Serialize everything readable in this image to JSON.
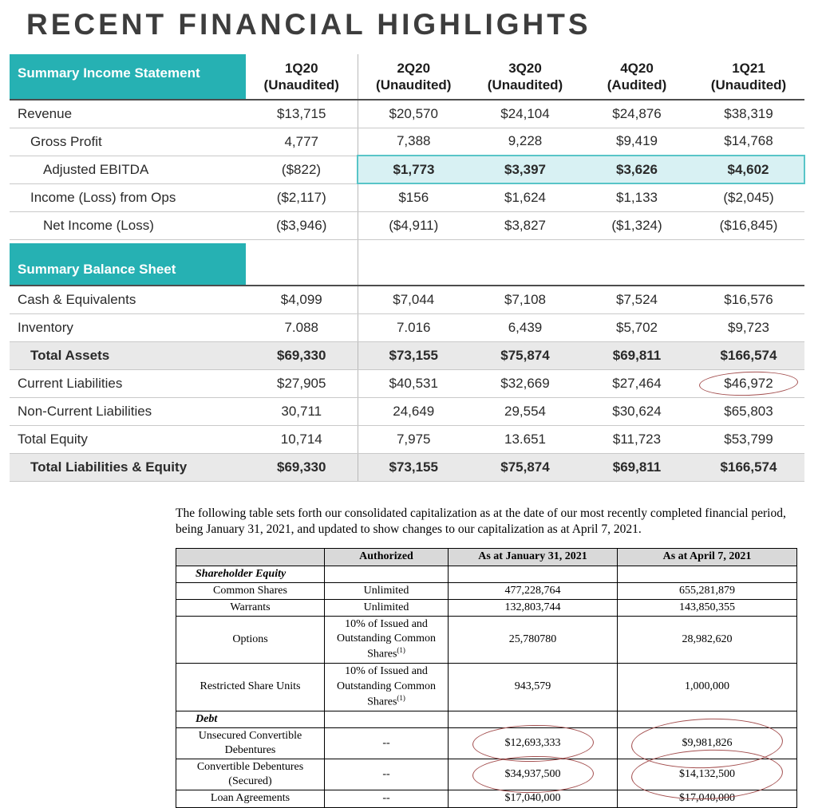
{
  "page": {
    "title": "RECENT FINANCIAL HIGHLIGHTS"
  },
  "colors": {
    "teal": "#26b1b3",
    "highlight_bg": "#d8f1f3",
    "highlight_border": "#58c5c8",
    "total_row_bg": "#e9e9e9",
    "table2_header_bg": "#d9d9d9",
    "annotation_red": "#a34f4f"
  },
  "summary_table": {
    "income_header": "Summary Income Statement",
    "balance_header": "Summary Balance Sheet",
    "columns": [
      {
        "period": "1Q20",
        "status": "(Unaudited)"
      },
      {
        "period": "2Q20",
        "status": "(Unaudited)"
      },
      {
        "period": "3Q20",
        "status": "(Unaudited)"
      },
      {
        "period": "4Q20",
        "status": "(Audited)"
      },
      {
        "period": "1Q21",
        "status": "(Unaudited)"
      }
    ],
    "income_rows": [
      {
        "label": "Revenue",
        "indent": 0,
        "values": [
          "$13,715",
          "$20,570",
          "$24,104",
          "$24,876",
          "$38,319"
        ]
      },
      {
        "label": "Gross Profit",
        "indent": 1,
        "values": [
          "4,777",
          "7,388",
          "9,228",
          "$9,419",
          "$14,768"
        ]
      },
      {
        "label": "Adjusted EBITDA",
        "indent": 2,
        "highlight": true,
        "values": [
          "($822)",
          "$1,773",
          "$3,397",
          "$3,626",
          "$4,602"
        ]
      },
      {
        "label": "Income (Loss) from Ops",
        "indent": 1,
        "values": [
          "($2,117)",
          "$156",
          "$1,624",
          "$1,133",
          "($2,045)"
        ]
      },
      {
        "label": "Net Income (Loss)",
        "indent": 2,
        "values": [
          "($3,946)",
          "($4,911)",
          "$3,827",
          "($1,324)",
          "($16,845)"
        ]
      }
    ],
    "balance_rows": [
      {
        "label": "Cash & Equivalents",
        "indent": 0,
        "values": [
          "$4,099",
          "$7,044",
          "$7,108",
          "$7,524",
          "$16,576"
        ]
      },
      {
        "label": "Inventory",
        "indent": 0,
        "values": [
          "7.088",
          "7.016",
          "6,439",
          "$5,702",
          "$9,723"
        ]
      },
      {
        "label": "Total Assets",
        "indent": 1,
        "total": true,
        "values": [
          "$69,330",
          "$73,155",
          "$75,874",
          "$69,811",
          "$166,574"
        ]
      },
      {
        "label": "Current Liabilities",
        "indent": 0,
        "values": [
          "$27,905",
          "$40,531",
          "$32,669",
          "$27,464",
          "$46,972"
        ],
        "circled": [
          4
        ]
      },
      {
        "label": "Non-Current Liabilities",
        "indent": 0,
        "values": [
          "30,711",
          "24,649",
          "29,554",
          "$30,624",
          "$65,803"
        ]
      },
      {
        "label": "Total Equity",
        "indent": 0,
        "values": [
          "10,714",
          "7,975",
          "13.651",
          "$11,723",
          "$53,799"
        ]
      },
      {
        "label": "Total Liabilities & Equity",
        "indent": 1,
        "total": true,
        "values": [
          "$69,330",
          "$73,155",
          "$75,874",
          "$69,811",
          "$166,574"
        ]
      }
    ]
  },
  "capitalization": {
    "intro": "The following table sets forth our consolidated capitalization as at the date of our most recently completed financial period, being January 31, 2021, and updated to show changes to our capitalization as at April 7, 2021.",
    "headers": [
      "",
      "Authorized",
      "As at January 31, 2021",
      "As at April 7, 2021"
    ],
    "rows": [
      {
        "type": "section",
        "label": "Shareholder Equity"
      },
      {
        "label": "Common Shares",
        "authorized": "Unlimited",
        "jan": "477,228,764",
        "apr": "655,281,879"
      },
      {
        "label": "Warrants",
        "authorized": "Unlimited",
        "jan": "132,803,744",
        "apr": "143,850,355"
      },
      {
        "label": "Options",
        "authorized": "10% of Issued and Outstanding Common Shares",
        "authorized_note": "(1)",
        "jan": "25,780780",
        "apr": "28,982,620"
      },
      {
        "label": "Restricted Share Units",
        "authorized": "10% of Issued and Outstanding Common Shares",
        "authorized_note": "(1)",
        "jan": "943,579",
        "apr": "1,000,000"
      },
      {
        "type": "section",
        "label": "Debt"
      },
      {
        "label": "Unsecured Convertible Debentures",
        "authorized": "--",
        "jan": "$12,693,333",
        "apr": "$9,981,826",
        "circled": [
          "jan",
          "apr"
        ]
      },
      {
        "label": "Convertible Debentures (Secured)",
        "authorized": "--",
        "jan": "$34,937,500",
        "apr": "$14,132,500",
        "circled": [
          "jan",
          "apr"
        ]
      },
      {
        "label": "Loan Agreements",
        "authorized": "--",
        "jan": "$17,040,000",
        "apr": "$17,040,000"
      }
    ]
  }
}
